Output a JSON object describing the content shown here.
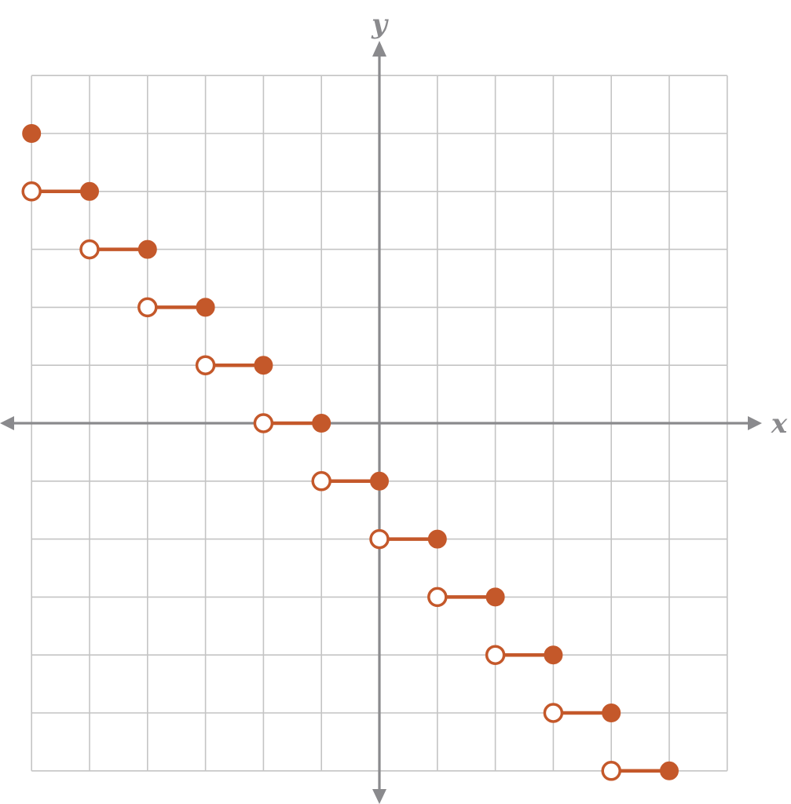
{
  "chart_data": {
    "type": "line",
    "description_kind": "step function",
    "xlabel": "x",
    "ylabel": "y",
    "xlim": [
      -6,
      6
    ],
    "ylim": [
      -6,
      6
    ],
    "grid": true,
    "tick_labels_shown": false,
    "series_color": "#c4582a",
    "segments": [
      {
        "x_start": -6,
        "x_end": -6,
        "y": 5,
        "start_open": false,
        "end_open": false
      },
      {
        "x_start": -6,
        "x_end": -5,
        "y": 4,
        "start_open": true,
        "end_open": false
      },
      {
        "x_start": -5,
        "x_end": -4,
        "y": 3,
        "start_open": true,
        "end_open": false
      },
      {
        "x_start": -4,
        "x_end": -3,
        "y": 2,
        "start_open": true,
        "end_open": false
      },
      {
        "x_start": -3,
        "x_end": -2,
        "y": 1,
        "start_open": true,
        "end_open": false
      },
      {
        "x_start": -2,
        "x_end": -1,
        "y": 0,
        "start_open": true,
        "end_open": false
      },
      {
        "x_start": -1,
        "x_end": 0,
        "y": -1,
        "start_open": true,
        "end_open": false
      },
      {
        "x_start": 0,
        "x_end": 1,
        "y": -2,
        "start_open": true,
        "end_open": false
      },
      {
        "x_start": 1,
        "x_end": 2,
        "y": -3,
        "start_open": true,
        "end_open": false
      },
      {
        "x_start": 2,
        "x_end": 3,
        "y": -4,
        "start_open": true,
        "end_open": false
      },
      {
        "x_start": 3,
        "x_end": 4,
        "y": -5,
        "start_open": true,
        "end_open": false
      },
      {
        "x_start": 4,
        "x_end": 5,
        "y": -6,
        "start_open": true,
        "end_open": false
      }
    ]
  },
  "colors": {
    "grid": "#c4c4c4",
    "axis": "#8a8a8d",
    "series": "#c4582a"
  }
}
